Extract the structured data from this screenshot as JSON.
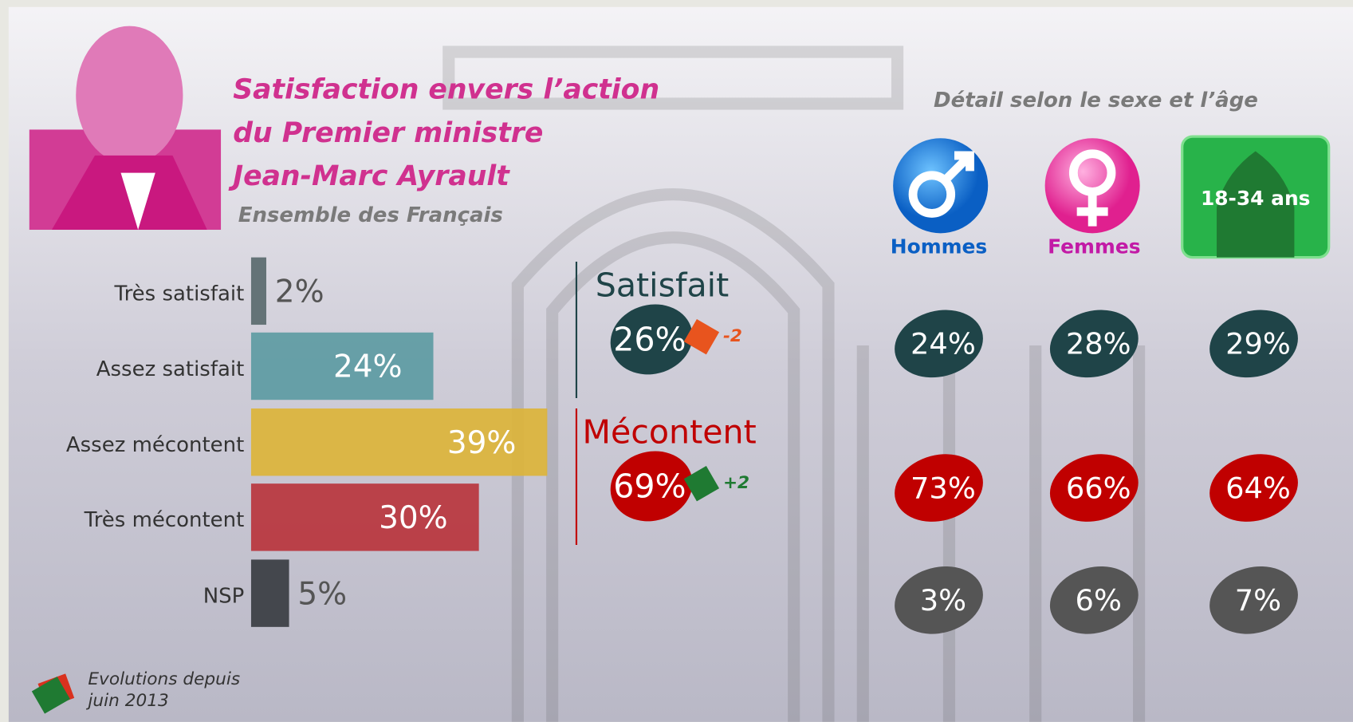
{
  "chart_data": {
    "type": "bar",
    "title_lines": [
      "Satisfaction envers l’action",
      "du Premier ministre",
      "Jean-Marc Ayrault"
    ],
    "subtitle": "Ensemble des Français",
    "categories": [
      "Très satisfait",
      "Assez satisfait",
      "Assez mécontent",
      "Très mécontent",
      "NSP"
    ],
    "values": [
      2,
      24,
      39,
      30,
      5
    ],
    "value_labels": [
      "2%",
      "24%",
      "39%",
      "30%",
      "5%"
    ],
    "colors": [
      "#5a6a6e",
      "#5d9ba3",
      "#dcb43a",
      "#b8353d",
      "#3a3d42"
    ],
    "summary": [
      {
        "name": "Satisfait",
        "value": 26,
        "value_label": "26%",
        "change": -2,
        "change_label": "-2",
        "color": "#1f4448",
        "change_color": "#e8541e"
      },
      {
        "name": "Mécontent",
        "value": 69,
        "value_label": "69%",
        "change": 2,
        "change_label": "+2",
        "color": "#c00000",
        "change_color": "#1f7a32"
      }
    ],
    "breakdown_title": "Détail selon le sexe et l’âge",
    "groups": [
      "Hommes",
      "Femmes",
      "18-34 ans"
    ],
    "breakdown": [
      {
        "values": [
          24,
          28,
          29
        ],
        "value_labels": [
          "24%",
          "28%",
          "29%"
        ],
        "color": "#1f4448"
      },
      {
        "values": [
          73,
          66,
          64
        ],
        "value_labels": [
          "73%",
          "66%",
          "64%"
        ],
        "color": "#c00000"
      },
      {
        "values": [
          3,
          6,
          7
        ],
        "value_labels": [
          "3%",
          "6%",
          "7%"
        ],
        "color": "#555555"
      }
    ],
    "legend_lines": [
      "Evolutions depuis",
      "juin 2013"
    ]
  }
}
